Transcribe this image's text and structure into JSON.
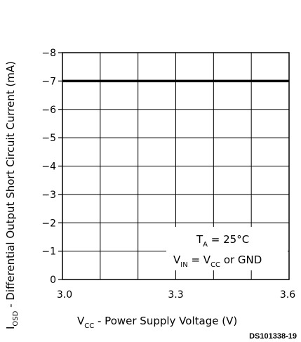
{
  "chart_data": {
    "type": "line",
    "ylabel": {
      "main": "I",
      "sub": "OSD",
      "rest": " - Differential Output Short Circuit Current (mA)"
    },
    "xlabel": {
      "main": "V",
      "sub": "CC",
      "rest": " - Power Supply Voltage (V)"
    },
    "x_ticks": [
      "3.0",
      "3.3",
      "3.6"
    ],
    "y_ticks": [
      "0",
      "−1",
      "−2",
      "−3",
      "−4",
      "−5",
      "−6",
      "−7",
      "−8"
    ],
    "xlim": [
      3.0,
      3.6
    ],
    "ylim": [
      0,
      -8
    ],
    "grid": true,
    "series": [
      {
        "x": [
          3.0,
          3.6
        ],
        "y": [
          -7,
          -7
        ]
      }
    ],
    "annotations": {
      "line1": {
        "a": "T",
        "a_sub": "A",
        "b": " = 25°C"
      },
      "line2": {
        "a": "V",
        "a_sub": "IN",
        "b": " = V",
        "b_sub": "CC",
        "c": " or GND"
      }
    },
    "figure_id": "DS101338-19"
  }
}
